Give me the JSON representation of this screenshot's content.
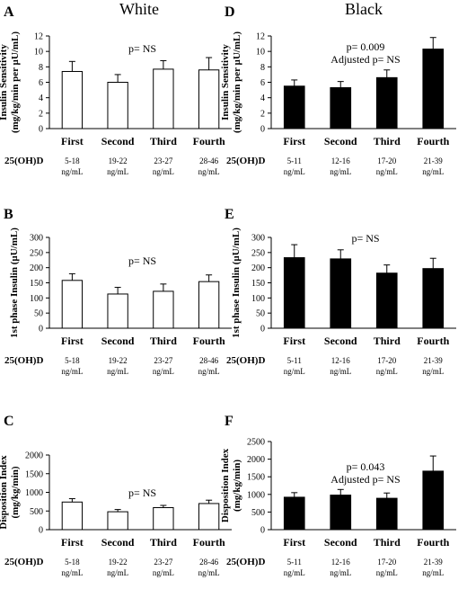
{
  "columns": [
    "White",
    "Black"
  ],
  "chart_data": [
    {
      "panel": "A",
      "type": "bar",
      "group": "White",
      "categories": [
        "First",
        "Second",
        "Third",
        "Fourth"
      ],
      "values": [
        7.4,
        6.0,
        7.7,
        7.6
      ],
      "errors": [
        1.3,
        1.0,
        1.1,
        1.6
      ],
      "ylabel_lines": [
        "Insulin Sensitivity",
        "(mg/kg/min per µU/mL)"
      ],
      "yticks": [
        0,
        2,
        4,
        6,
        8,
        10,
        12
      ],
      "ylim": [
        0,
        12
      ],
      "annotation": [
        "p= NS"
      ],
      "xaxis_name": "25(OH)D",
      "ranges": [
        "5-18",
        "19-22",
        "23-27",
        "28-46"
      ],
      "unit": "ng/mL",
      "bar_color": "#ffffff"
    },
    {
      "panel": "D",
      "type": "bar",
      "group": "Black",
      "categories": [
        "First",
        "Second",
        "Third",
        "Fourth"
      ],
      "values": [
        5.5,
        5.3,
        6.6,
        10.3
      ],
      "errors": [
        0.8,
        0.8,
        1.0,
        1.5
      ],
      "ylabel_lines": [
        "Insulin Sensitivity",
        "(mg/kg/min per µU/mL)"
      ],
      "yticks": [
        0,
        2,
        4,
        6,
        8,
        10,
        12
      ],
      "ylim": [
        0,
        12
      ],
      "annotation": [
        "p= 0.009",
        "Adjusted p= NS"
      ],
      "xaxis_name": "25(OH)D",
      "ranges": [
        "5-11",
        "12-16",
        "17-20",
        "21-39"
      ],
      "unit": "ng/mL",
      "bar_color": "#000000"
    },
    {
      "panel": "B",
      "type": "bar",
      "group": "White",
      "categories": [
        "First",
        "Second",
        "Third",
        "Fourth"
      ],
      "values": [
        158,
        113,
        122,
        154
      ],
      "errors": [
        22,
        22,
        24,
        22
      ],
      "ylabel_lines": [
        "1st phase Insulin (µU/mL)"
      ],
      "yticks": [
        0,
        50,
        100,
        150,
        200,
        250,
        300
      ],
      "ylim": [
        0,
        300
      ],
      "annotation": [
        "p= NS"
      ],
      "xaxis_name": "25(OH)D",
      "ranges": [
        "5-18",
        "19-22",
        "23-27",
        "28-46"
      ],
      "unit": "ng/mL",
      "bar_color": "#ffffff"
    },
    {
      "panel": "E",
      "type": "bar",
      "group": "Black",
      "categories": [
        "First",
        "Second",
        "Third",
        "Fourth"
      ],
      "values": [
        233,
        229,
        182,
        197
      ],
      "errors": [
        43,
        30,
        27,
        34
      ],
      "ylabel_lines": [
        "1st phase Insulin (µU/mL)"
      ],
      "yticks": [
        0,
        50,
        100,
        150,
        200,
        250,
        300
      ],
      "ylim": [
        0,
        300
      ],
      "annotation": [
        "p= NS"
      ],
      "xaxis_name": "25(OH)D",
      "ranges": [
        "5-11",
        "12-16",
        "17-20",
        "21-39"
      ],
      "unit": "ng/mL",
      "bar_color": "#000000"
    },
    {
      "panel": "C",
      "type": "bar",
      "group": "White",
      "categories": [
        "First",
        "Second",
        "Third",
        "Fourth"
      ],
      "values": [
        740,
        480,
        590,
        700
      ],
      "errors": [
        90,
        60,
        60,
        90
      ],
      "ylabel_lines": [
        "Disposition Index",
        "(mg/kg/min)"
      ],
      "yticks": [
        0,
        500,
        1000,
        1500,
        2000
      ],
      "ylim": [
        0,
        2000
      ],
      "annotation": [
        "p= NS"
      ],
      "xaxis_name": "25(OH)D",
      "ranges": [
        "5-18",
        "19-22",
        "23-27",
        "28-46"
      ],
      "unit": "ng/mL",
      "bar_color": "#ffffff"
    },
    {
      "panel": "F",
      "type": "bar",
      "group": "Black",
      "categories": [
        "First",
        "Second",
        "Third",
        "Fourth"
      ],
      "values": [
        920,
        980,
        890,
        1660
      ],
      "errors": [
        130,
        160,
        150,
        430
      ],
      "ylabel_lines": [
        "Disposition Index",
        "(mg/kg/min)"
      ],
      "yticks": [
        0,
        500,
        1000,
        1500,
        2000,
        2500
      ],
      "ylim": [
        0,
        2500
      ],
      "annotation": [
        "p= 0.043",
        "Adjusted p= NS"
      ],
      "xaxis_name": "25(OH)D",
      "ranges": [
        "5-11",
        "12-16",
        "17-20",
        "21-39"
      ],
      "unit": "ng/mL",
      "bar_color": "#000000"
    }
  ]
}
